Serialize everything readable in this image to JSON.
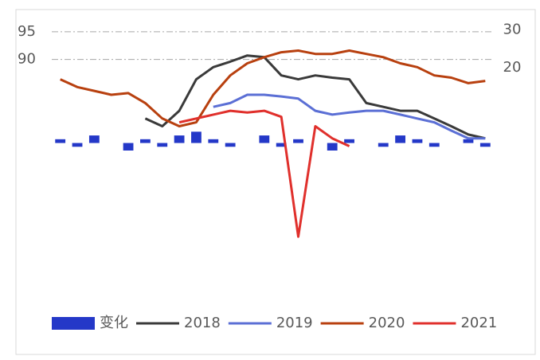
{
  "chart_data": {
    "type": "bar-line",
    "categories": [
      null,
      null,
      null,
      null,
      null,
      null,
      null,
      null,
      null,
      null,
      null,
      null,
      null,
      null,
      null,
      null,
      null,
      null,
      null,
      null,
      null,
      null,
      null,
      null,
      null,
      null
    ],
    "series": [
      {
        "name": "变化",
        "type": "bar",
        "axis": "y2",
        "color": "#2438c8",
        "values": [
          1,
          -1,
          2,
          0,
          -2,
          1,
          -1,
          2,
          3,
          1,
          -1,
          0,
          2,
          -1,
          1,
          0,
          -2,
          1,
          0,
          -1,
          2,
          1,
          -1,
          0,
          1,
          -1
        ]
      },
      {
        "name": "2018",
        "type": "line",
        "color": "#3a3a3a",
        "values": [
          null,
          null,
          null,
          null,
          null,
          79.3,
          77.9,
          80.7,
          86.4,
          88.6,
          89.6,
          90.7,
          90.4,
          87.1,
          86.4,
          87.1,
          86.7,
          86.4,
          82.1,
          81.4,
          80.7,
          80.7,
          79.3,
          77.9,
          76.4,
          75.7
        ]
      },
      {
        "name": "2019",
        "type": "line",
        "color": "#5b6fd5",
        "values": [
          null,
          null,
          null,
          null,
          null,
          null,
          null,
          null,
          null,
          81.4,
          82.1,
          83.6,
          83.6,
          83.3,
          82.9,
          80.7,
          80,
          80.4,
          80.7,
          80.7,
          80,
          79.3,
          78.6,
          77.1,
          75.7,
          75.7
        ]
      },
      {
        "name": "2020",
        "type": "line",
        "color": "#b8400f",
        "values": [
          86.4,
          85,
          84.3,
          83.6,
          83.9,
          82.1,
          79.3,
          77.9,
          78.6,
          83.6,
          87.1,
          89.3,
          90.4,
          91.3,
          91.6,
          91,
          91,
          91.6,
          91,
          90.4,
          89.3,
          88.6,
          87.1,
          86.7,
          85.7,
          86.1
        ]
      },
      {
        "name": "2021",
        "type": "line",
        "color": "#e0302c",
        "values": [
          null,
          null,
          null,
          null,
          null,
          null,
          null,
          78.6,
          79.3,
          80,
          80.7,
          80.4,
          80.7,
          79.6,
          57.9,
          77.9,
          75.7,
          74.3,
          null,
          null,
          null,
          null,
          null,
          null,
          null,
          null
        ]
      }
    ],
    "ylim": [
      51,
      96
    ],
    "yticks": [
      90,
      95
    ],
    "y2lim": [
      -35,
      31
    ],
    "y2ticks": [
      20,
      30
    ],
    "grid": true,
    "legend": "bottom"
  }
}
